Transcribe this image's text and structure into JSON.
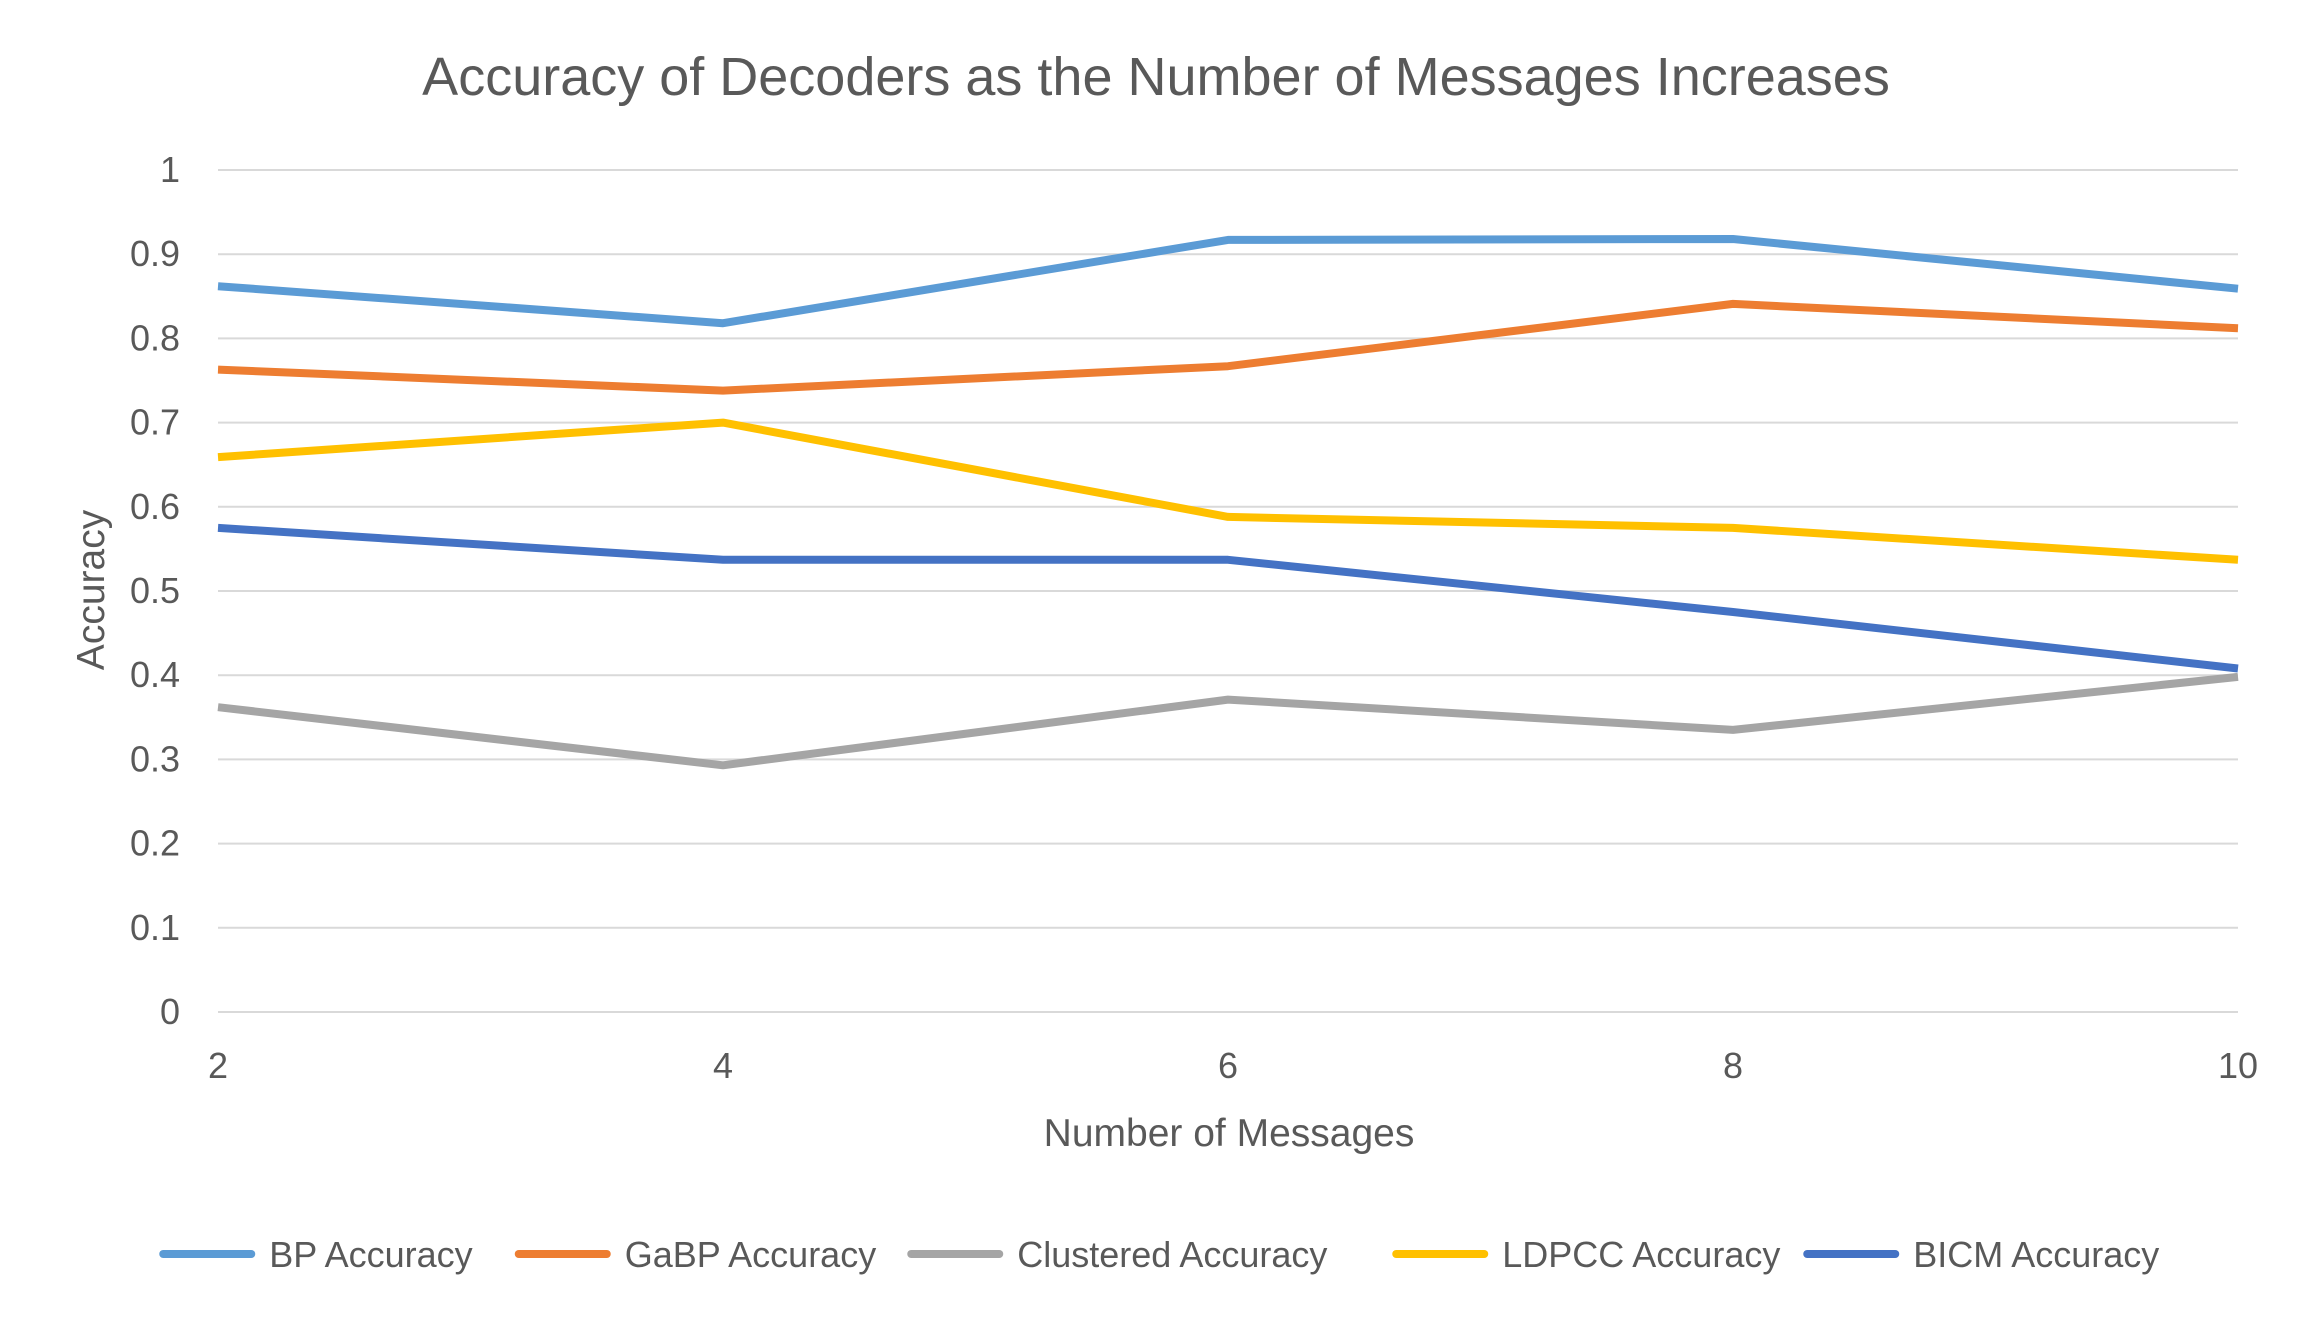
{
  "chart_data": {
    "type": "line",
    "title": "Accuracy of Decoders as the Number of Messages Increases",
    "xlabel": "Number of Messages",
    "ylabel": "Accuracy",
    "x": [
      2,
      4,
      6,
      8,
      10
    ],
    "x_tick_labels": [
      "2",
      "4",
      "6",
      "8",
      "10"
    ],
    "xlim": [
      2,
      10
    ],
    "ylim": [
      0,
      1
    ],
    "y_ticks": [
      0,
      0.1,
      0.2,
      0.3,
      0.4,
      0.5,
      0.6,
      0.7,
      0.8,
      0.9,
      1
    ],
    "y_tick_labels": [
      "0",
      "0.1",
      "0.2",
      "0.3",
      "0.4",
      "0.5",
      "0.6",
      "0.7",
      "0.8",
      "0.9",
      "1"
    ],
    "grid": true,
    "legend_position": "bottom",
    "series": [
      {
        "name": "BP Accuracy",
        "color": "#5B9BD5",
        "values": [
          0.862,
          0.818,
          0.917,
          0.918,
          0.859
        ]
      },
      {
        "name": "GaBP Accuracy",
        "color": "#ED7D31",
        "values": [
          0.763,
          0.738,
          0.767,
          0.841,
          0.812
        ]
      },
      {
        "name": "Clustered Accuracy",
        "color": "#A5A5A5",
        "values": [
          0.362,
          0.293,
          0.371,
          0.335,
          0.398
        ]
      },
      {
        "name": "LDPCC Accuracy",
        "color": "#FFC000",
        "values": [
          0.659,
          0.7,
          0.588,
          0.575,
          0.537
        ]
      },
      {
        "name": "BICM Accuracy",
        "color": "#4472C4",
        "values": [
          0.575,
          0.537,
          0.537,
          0.475,
          0.408
        ]
      }
    ]
  }
}
